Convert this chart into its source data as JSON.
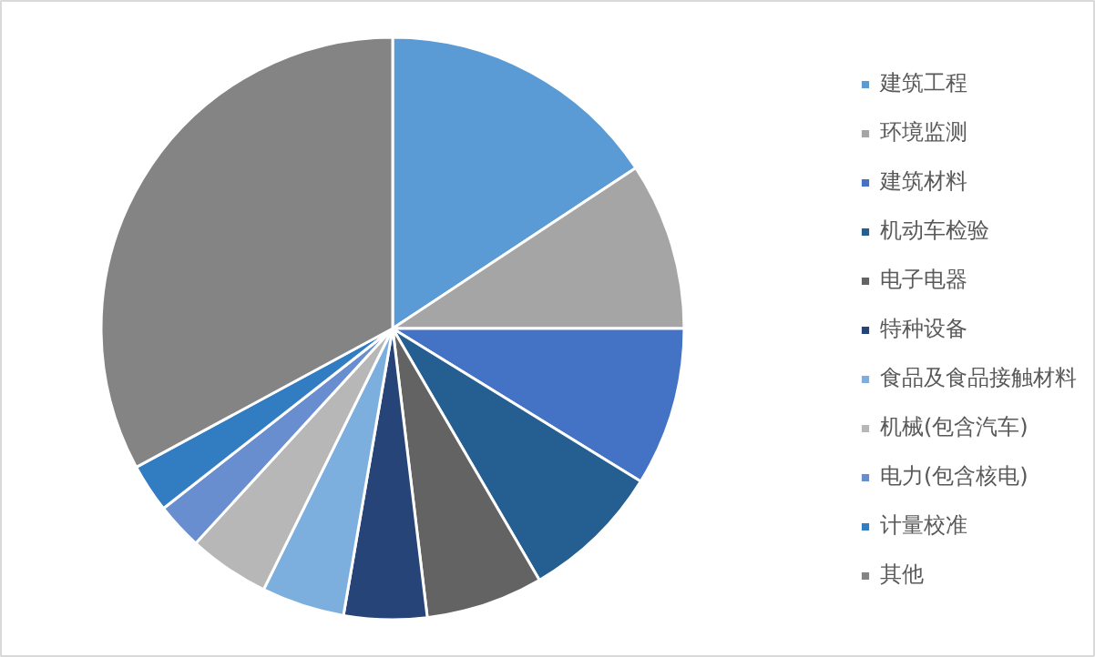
{
  "chart_data": {
    "type": "pie",
    "categories": [
      "建筑工程",
      "环境监测",
      "建筑材料",
      "机动车检验",
      "电子电器",
      "特种设备",
      "食品及食品接触材料",
      "机械(包含汽车)",
      "电力(包含核电)",
      "计量校准",
      "其他"
    ],
    "values": [
      15.7,
      9.3,
      8.8,
      7.8,
      6.5,
      4.6,
      4.6,
      4.5,
      2.6,
      2.7,
      32.9
    ],
    "colors": [
      "#5b9bd5",
      "#a5a5a5",
      "#4472c4",
      "#255e91",
      "#636363",
      "#264478",
      "#7cafdd",
      "#b7b7b7",
      "#698ed0",
      "#327dc2",
      "#848484"
    ],
    "legend": "right"
  }
}
